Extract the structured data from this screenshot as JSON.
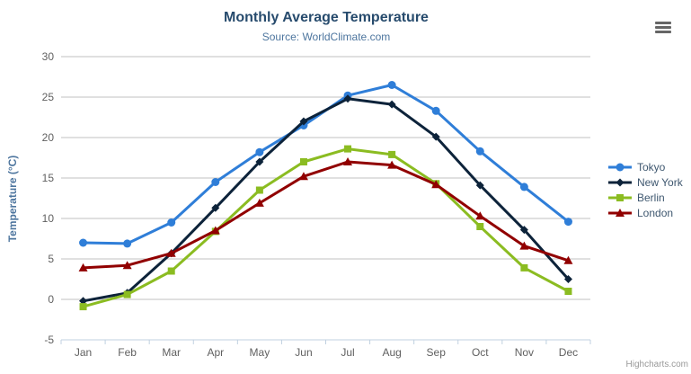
{
  "chart": {
    "title": "Monthly Average Temperature",
    "subtitle": "Source: WorldClimate.com",
    "credits": "Highcharts.com"
  },
  "chart_data": {
    "type": "line",
    "title": "Monthly Average Temperature",
    "subtitle": "Source: WorldClimate.com",
    "xlabel": "",
    "ylabel": "Temperature (°C)",
    "categories": [
      "Jan",
      "Feb",
      "Mar",
      "Apr",
      "May",
      "Jun",
      "Jul",
      "Aug",
      "Sep",
      "Oct",
      "Nov",
      "Dec"
    ],
    "series": [
      {
        "name": "Tokyo",
        "color": "#2f7ed8",
        "marker": "circle",
        "values": [
          7.0,
          6.9,
          9.5,
          14.5,
          18.2,
          21.5,
          25.2,
          26.5,
          23.3,
          18.3,
          13.9,
          9.6
        ]
      },
      {
        "name": "New York",
        "color": "#0d233a",
        "marker": "diamond",
        "values": [
          -0.2,
          0.8,
          5.7,
          11.3,
          17.0,
          22.0,
          24.8,
          24.1,
          20.1,
          14.1,
          8.6,
          2.5
        ]
      },
      {
        "name": "Berlin",
        "color": "#8bbc21",
        "marker": "square",
        "values": [
          -0.9,
          0.6,
          3.5,
          8.4,
          13.5,
          17.0,
          18.6,
          17.9,
          14.3,
          9.0,
          3.9,
          1.0
        ]
      },
      {
        "name": "London",
        "color": "#910000",
        "marker": "triangle",
        "values": [
          3.9,
          4.2,
          5.7,
          8.5,
          11.9,
          15.2,
          17.0,
          16.6,
          14.2,
          10.3,
          6.6,
          4.8
        ]
      }
    ],
    "ylim": [
      -5,
      30
    ],
    "ytick_interval": 5,
    "grid": true,
    "legend_position": "right",
    "colors": {
      "grid_line": "#C0C0C0",
      "axis_line": "#C0D0E0",
      "tick_label": "#606060",
      "title": "#274b6d",
      "subtitle": "#4d759e",
      "legend_text": "#3E576F"
    }
  }
}
